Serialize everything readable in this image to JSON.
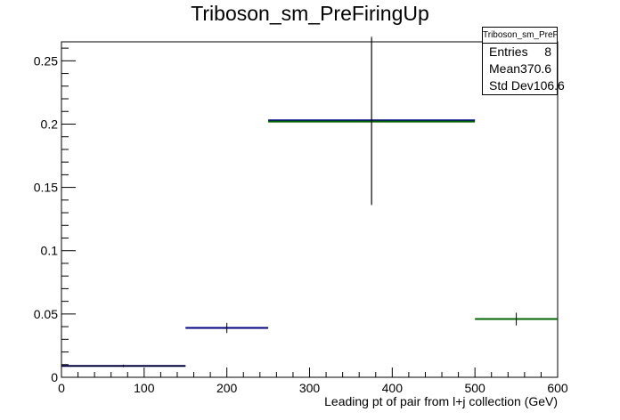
{
  "chart_data": {
    "type": "histogram",
    "title": "Triboson_sm_PreFiringUp",
    "xlabel": "Leading pt of pair from l+j collection (GeV)",
    "ylabel": "",
    "xlim": [
      0,
      600
    ],
    "ylim": [
      0,
      0.265
    ],
    "x_ticks": [
      0,
      100,
      200,
      300,
      400,
      500,
      600
    ],
    "y_ticks": [
      0,
      0.05,
      0.1,
      0.15,
      0.2,
      0.25
    ],
    "x_tick_labels": [
      "0",
      "100",
      "200",
      "300",
      "400",
      "500",
      "600"
    ],
    "y_tick_labels": [
      "0",
      "0.05",
      "0.1",
      "0.15",
      "0.2",
      "0.25"
    ],
    "grid": false,
    "series": [
      {
        "color": "#000080",
        "bins": [
          {
            "x_low": 0,
            "x_high": 150,
            "y": 0.009,
            "err": 0.001
          },
          {
            "x_low": 150,
            "x_high": 250,
            "y": 0.039,
            "err": 0.004
          },
          {
            "x_low": 250,
            "x_high": 500,
            "y": 0.203,
            "err": 0.066
          }
        ]
      },
      {
        "color": "#006400",
        "bins": [
          {
            "x_low": 250,
            "x_high": 500,
            "y": 0.202,
            "err": 0.066
          },
          {
            "x_low": 500,
            "x_high": 600,
            "y": 0.046,
            "err": 0.005
          }
        ]
      }
    ]
  },
  "stats": {
    "name": "Triboson_sm_PreFiringUp",
    "entries_label": "Entries",
    "entries_value": "8",
    "mean_label": "Mean",
    "mean_value": "370.6",
    "stddev_label": "Std Dev",
    "stddev_value": "106.6"
  }
}
